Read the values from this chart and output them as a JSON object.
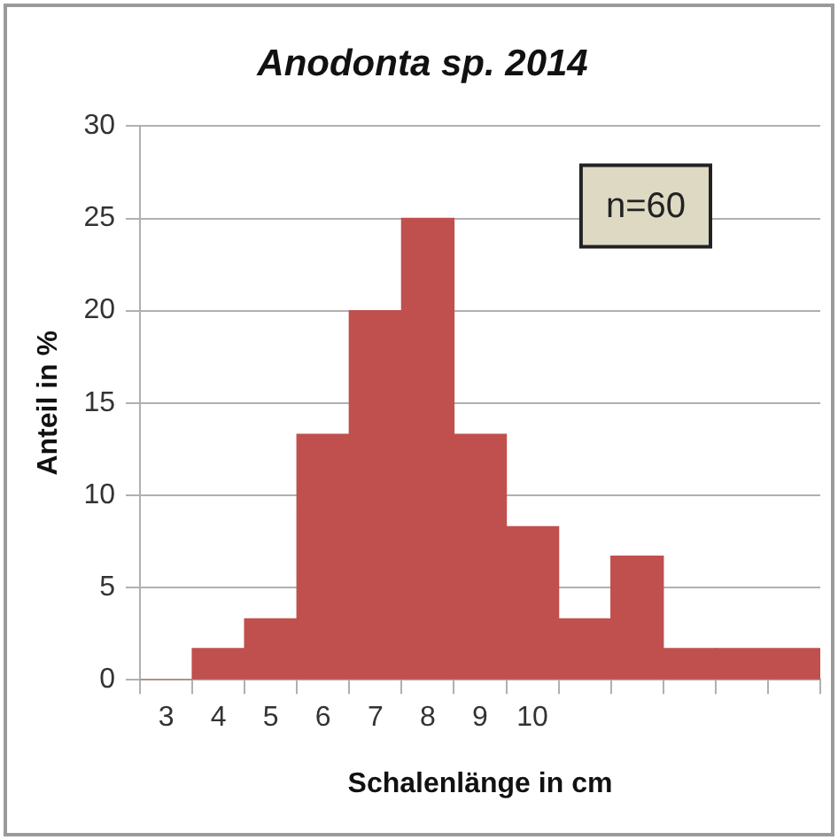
{
  "chart_data": {
    "type": "bar",
    "title": "Anodonta sp. 2014",
    "xlabel": "Schalenlänge in cm",
    "ylabel": "Anteil in %",
    "categories": [
      "3",
      "4",
      "5",
      "6",
      "7",
      "8",
      "9",
      "10",
      null,
      null,
      null,
      null,
      null
    ],
    "values": [
      0,
      1.7,
      3.3,
      13.3,
      20,
      25,
      13.3,
      8.3,
      3.3,
      6.7,
      1.7,
      1.7,
      1.7
    ],
    "color": "#c0504d",
    "ylim": [
      0,
      30
    ],
    "yticks": [
      0,
      5,
      10,
      15,
      20,
      25,
      30
    ],
    "grid": "y",
    "legend": false,
    "annotations": [
      "n=60"
    ]
  }
}
